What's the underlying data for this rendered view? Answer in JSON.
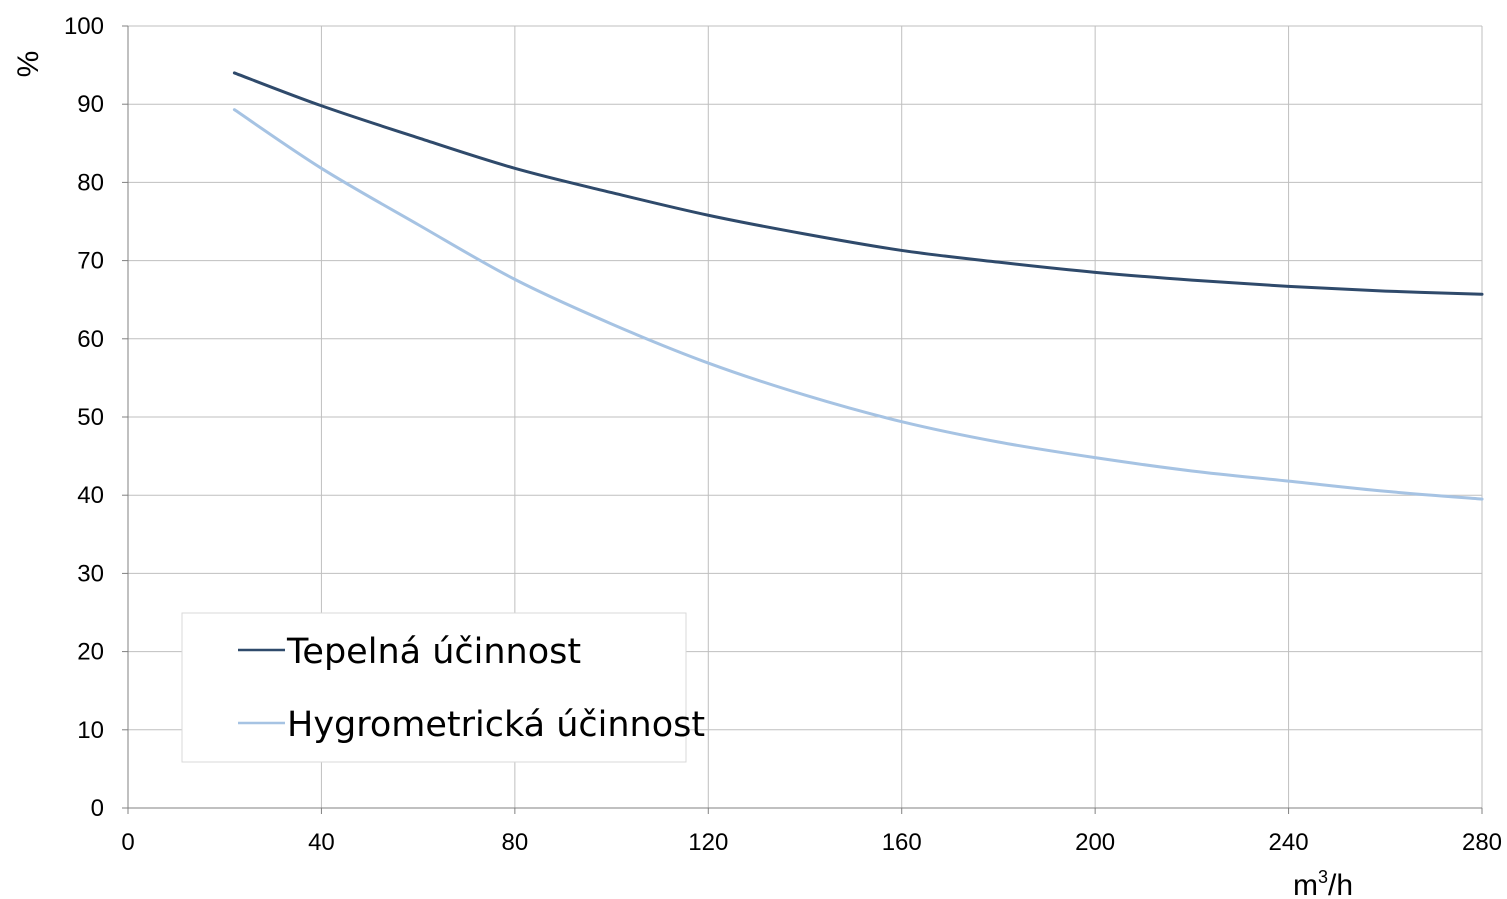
{
  "chart_data": {
    "type": "line",
    "title": "",
    "xlabel": "m³/h",
    "xlabel_base": "m",
    "xlabel_sup": "3",
    "xlabel_tail": "/h",
    "ylabel": "%",
    "xlim": [
      0,
      280
    ],
    "ylim": [
      0,
      100
    ],
    "x_ticks": [
      "0",
      "40",
      "80",
      "120",
      "160",
      "200",
      "240",
      "280"
    ],
    "y_ticks": [
      "0",
      "10",
      "20",
      "30",
      "40",
      "50",
      "60",
      "70",
      "80",
      "90",
      "100"
    ],
    "grid": true,
    "legend_position": "bottom-left",
    "series": [
      {
        "name": "Tepelná účinnost",
        "color": "#2f4a6b",
        "x": [
          22,
          40,
          60,
          80,
          100,
          120,
          140,
          160,
          180,
          200,
          220,
          240,
          260,
          280
        ],
        "values": [
          94,
          89.8,
          85.7,
          81.8,
          78.7,
          75.8,
          73.4,
          71.3,
          69.8,
          68.5,
          67.5,
          66.7,
          66.1,
          65.7
        ]
      },
      {
        "name": "Hygrometrická účinnost",
        "color": "#a6c3e3",
        "x": [
          22,
          40,
          60,
          80,
          100,
          120,
          140,
          160,
          180,
          200,
          220,
          240,
          260,
          280
        ],
        "values": [
          89.3,
          81.8,
          74.6,
          67.6,
          61.9,
          56.9,
          52.8,
          49.4,
          46.8,
          44.8,
          43.1,
          41.8,
          40.5,
          39.5
        ]
      }
    ]
  }
}
